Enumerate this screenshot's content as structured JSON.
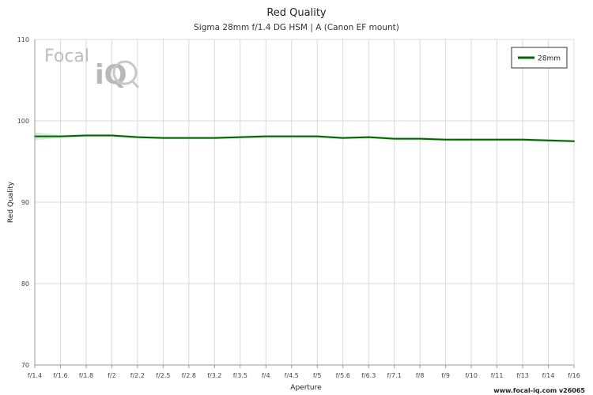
{
  "chart_data": {
    "type": "line",
    "title": "Red Quality",
    "subtitle": "Sigma 28mm f/1.4 DG HSM | A (Canon EF mount)",
    "xlabel": "Aperture",
    "ylabel": "Red Quality",
    "ylim": [
      70,
      110
    ],
    "yticks": [
      70,
      80,
      90,
      100,
      110
    ],
    "grid": true,
    "legend_position": "top-right",
    "categories": [
      "f/1.4",
      "f/1.6",
      "f/1.8",
      "f/2",
      "f/2.2",
      "f/2.5",
      "f/2.8",
      "f/3.2",
      "f/3.5",
      "f/4",
      "f/4.5",
      "f/5",
      "f/5.6",
      "f/6.3",
      "f/7.1",
      "f/8",
      "f/9",
      "f/10",
      "f/11",
      "f/13",
      "f/14",
      "f/16"
    ],
    "series": [
      {
        "name": "28mm",
        "color": "#006400",
        "values": [
          98.1,
          98.1,
          98.2,
          98.2,
          98.0,
          97.9,
          97.9,
          97.9,
          98.0,
          98.1,
          98.1,
          98.1,
          97.9,
          98.0,
          97.8,
          97.8,
          97.7,
          97.7,
          97.7,
          97.7,
          97.6,
          97.5
        ]
      }
    ]
  },
  "logo": {
    "text_focal": "Focal",
    "text_iq": "iQ"
  },
  "footer": "www.focal-iq.com  v26065",
  "colors": {
    "grid": "#d9d9d9",
    "axis": "#9a9a9a",
    "band": "#d7e9d7"
  }
}
